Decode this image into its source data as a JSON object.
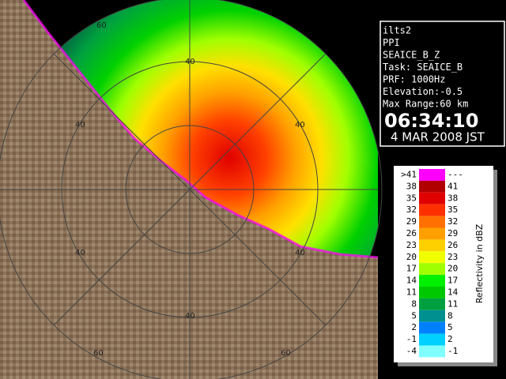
{
  "info": {
    "lines": [
      "ilts2",
      "PPI",
      "SEAICE_B_Z",
      "Task: SEAICE_B",
      "PRF: 1000Hz",
      "Elevation:-0.5",
      "Max Range:60 km"
    ],
    "time": "06:34:10",
    "date": "4 MAR 2008 JST"
  },
  "range_labels": [
    "60",
    "60",
    "60",
    "40",
    "40",
    "40",
    "40",
    "40",
    "40"
  ],
  "legend": {
    "title": "Reflectivity in dBZ",
    "rows": [
      {
        "low": ">41",
        "high": "---",
        "color": "#ff00ff"
      },
      {
        "low": "38",
        "high": "41",
        "color": "#b00000"
      },
      {
        "low": "35",
        "high": "38",
        "color": "#e00000"
      },
      {
        "low": "32",
        "high": "35",
        "color": "#ff3000"
      },
      {
        "low": "29",
        "high": "32",
        "color": "#ff7000"
      },
      {
        "low": "26",
        "high": "29",
        "color": "#ffa000"
      },
      {
        "low": "23",
        "high": "26",
        "color": "#ffd000"
      },
      {
        "low": "20",
        "high": "23",
        "color": "#f0ff00"
      },
      {
        "low": "17",
        "high": "20",
        "color": "#a0ff00"
      },
      {
        "low": "14",
        "high": "17",
        "color": "#00f000"
      },
      {
        "low": "11",
        "high": "14",
        "color": "#00c800"
      },
      {
        "low": "8",
        "high": "11",
        "color": "#00a040"
      },
      {
        "low": "5",
        "high": "8",
        "color": "#009090"
      },
      {
        "low": "2",
        "high": "5",
        "color": "#0080ff"
      },
      {
        "low": "-1",
        "high": "2",
        "color": "#00d0ff"
      },
      {
        "low": "-4",
        "high": "-1",
        "color": "#80ffff"
      }
    ]
  }
}
